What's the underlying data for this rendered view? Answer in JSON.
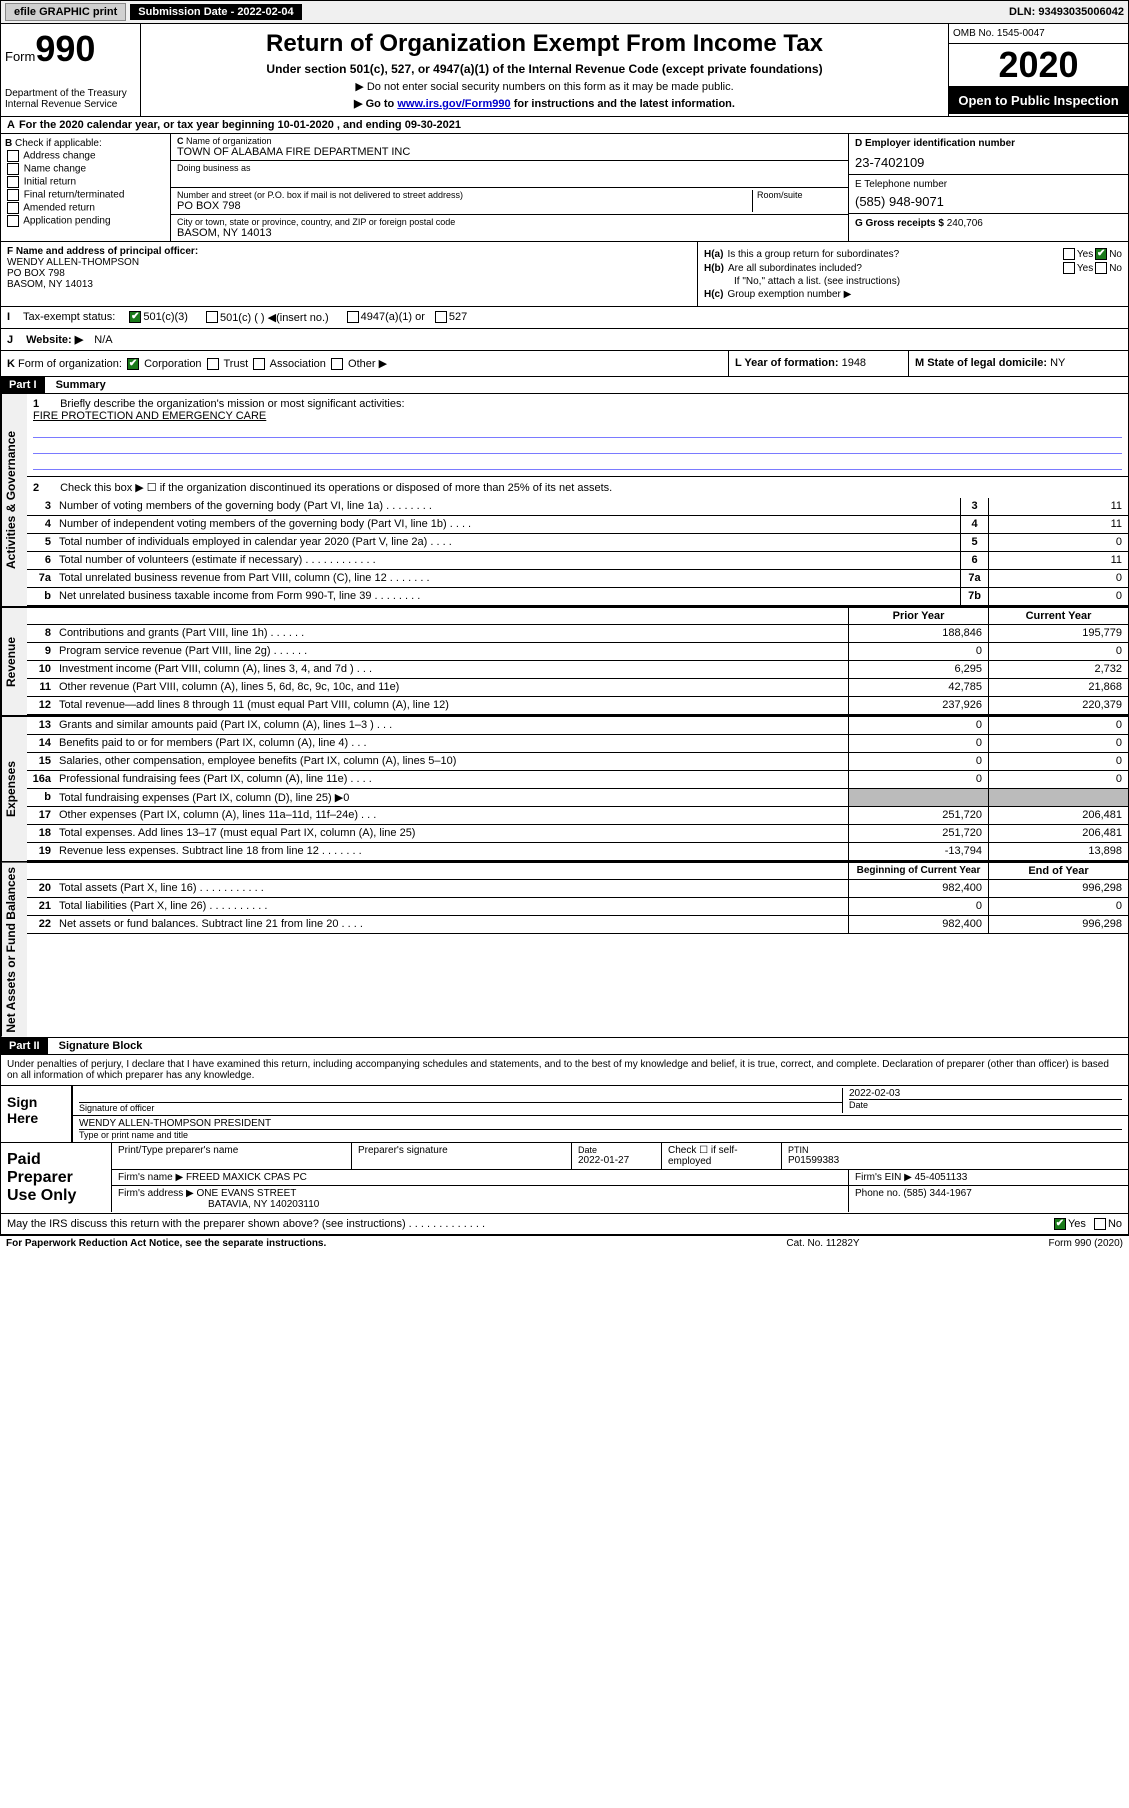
{
  "topbar": {
    "efile": "efile GRAPHIC print",
    "submission": "Submission Date - 2022-02-04",
    "dln": "DLN: 93493035006042"
  },
  "header": {
    "form_prefix": "Form",
    "form_number": "990",
    "dept": "Department of the Treasury\nInternal Revenue Service",
    "title": "Return of Organization Exempt From Income Tax",
    "sub1": "Under section 501(c), 527, or 4947(a)(1) of the Internal Revenue Code (except private foundations)",
    "sub2": "▶ Do not enter social security numbers on this form as it may be made public.",
    "sub3_pre": "▶ Go to ",
    "sub3_link": "www.irs.gov/Form990",
    "sub3_post": " for instructions and the latest information.",
    "omb": "OMB No. 1545-0047",
    "year": "2020",
    "public": "Open to Public Inspection"
  },
  "A": {
    "text": "For the 2020 calendar year, or tax year beginning 10-01-2020    , and ending 09-30-2021"
  },
  "B": {
    "label": "Check if applicable:",
    "items": [
      "Address change",
      "Name change",
      "Initial return",
      "Final return/terminated",
      "Amended return",
      "Application pending"
    ]
  },
  "C": {
    "name_lbl": "Name of organization",
    "name": "TOWN OF ALABAMA FIRE DEPARTMENT INC",
    "dba_lbl": "Doing business as",
    "addr_lbl": "Number and street (or P.O. box if mail is not delivered to street address)",
    "room_lbl": "Room/suite",
    "addr": "PO BOX 798",
    "city_lbl": "City or town, state or province, country, and ZIP or foreign postal code",
    "city": "BASOM, NY  14013"
  },
  "D": {
    "lbl": "D Employer identification number",
    "val": "23-7402109"
  },
  "E": {
    "lbl": "E Telephone number",
    "val": "(585) 948-9071"
  },
  "G": {
    "lbl": "G Gross receipts $",
    "val": "240,706"
  },
  "F": {
    "lbl": "F  Name and address of principal officer:",
    "name": "WENDY ALLEN-THOMPSON",
    "addr1": "PO BOX 798",
    "addr2": "BASOM, NY  14013"
  },
  "H": {
    "a": "Is this a group return for subordinates?",
    "b": "Are all subordinates included?",
    "b_note": "If \"No,\" attach a list. (see instructions)",
    "c": "Group exemption number ▶"
  },
  "I": {
    "label": "Tax-exempt status:",
    "opts": [
      "501(c)(3)",
      "501(c) (  ) ◀(insert no.)",
      "4947(a)(1) or",
      "527"
    ]
  },
  "J": {
    "label": "Website: ▶",
    "val": "N/A"
  },
  "K": {
    "label": "Form of organization:",
    "opts": [
      "Corporation",
      "Trust",
      "Association",
      "Other ▶"
    ]
  },
  "L": {
    "lbl": "L Year of formation:",
    "val": "1948"
  },
  "M": {
    "lbl": "M State of legal domicile:",
    "val": "NY"
  },
  "part1": {
    "bar": "Part I",
    "title": "Summary",
    "side_ag": "Activities & Governance",
    "side_rev": "Revenue",
    "side_exp": "Expenses",
    "side_na": "Net Assets or Fund Balances",
    "q1": "Briefly describe the organization's mission or most significant activities:",
    "q1_ans": "FIRE PROTECTION AND EMERGENCY CARE",
    "q2": "Check this box ▶ ☐  if the organization discontinued its operations or disposed of more than 25% of its net assets.",
    "lines_ag": [
      {
        "n": "3",
        "d": "Number of voting members of the governing body (Part VI, line 1a) . . . . . . . .",
        "c": "3",
        "v": "11"
      },
      {
        "n": "4",
        "d": "Number of independent voting members of the governing body (Part VI, line 1b) . . . .",
        "c": "4",
        "v": "11"
      },
      {
        "n": "5",
        "d": "Total number of individuals employed in calendar year 2020 (Part V, line 2a) . . . .",
        "c": "5",
        "v": "0"
      },
      {
        "n": "6",
        "d": "Total number of volunteers (estimate if necessary) . . . . . . . . . . . .",
        "c": "6",
        "v": "11"
      },
      {
        "n": "7a",
        "d": "Total unrelated business revenue from Part VIII, column (C), line 12 . . . . . . .",
        "c": "7a",
        "v": "0"
      },
      {
        "n": "b",
        "d": "Net unrelated business taxable income from Form 990-T, line 39 . . . . . . . .",
        "c": "7b",
        "v": "0"
      }
    ],
    "hdr_prior": "Prior Year",
    "hdr_curr": "Current Year",
    "lines_rev": [
      {
        "n": "8",
        "d": "Contributions and grants (Part VIII, line 1h) . . . . . .",
        "p": "188,846",
        "c": "195,779"
      },
      {
        "n": "9",
        "d": "Program service revenue (Part VIII, line 2g) . . . . . .",
        "p": "0",
        "c": "0"
      },
      {
        "n": "10",
        "d": "Investment income (Part VIII, column (A), lines 3, 4, and 7d ) . . .",
        "p": "6,295",
        "c": "2,732"
      },
      {
        "n": "11",
        "d": "Other revenue (Part VIII, column (A), lines 5, 6d, 8c, 9c, 10c, and 11e)",
        "p": "42,785",
        "c": "21,868"
      },
      {
        "n": "12",
        "d": "Total revenue—add lines 8 through 11 (must equal Part VIII, column (A), line 12)",
        "p": "237,926",
        "c": "220,379"
      }
    ],
    "lines_exp": [
      {
        "n": "13",
        "d": "Grants and similar amounts paid (Part IX, column (A), lines 1–3 ) . . .",
        "p": "0",
        "c": "0"
      },
      {
        "n": "14",
        "d": "Benefits paid to or for members (Part IX, column (A), line 4) . . .",
        "p": "0",
        "c": "0"
      },
      {
        "n": "15",
        "d": "Salaries, other compensation, employee benefits (Part IX, column (A), lines 5–10)",
        "p": "0",
        "c": "0"
      },
      {
        "n": "16a",
        "d": "Professional fundraising fees (Part IX, column (A), line 11e) . . . .",
        "p": "0",
        "c": "0"
      },
      {
        "n": "b",
        "d": "Total fundraising expenses (Part IX, column (D), line 25) ▶0",
        "p": "",
        "c": "",
        "shade": true
      },
      {
        "n": "17",
        "d": "Other expenses (Part IX, column (A), lines 11a–11d, 11f–24e) . . .",
        "p": "251,720",
        "c": "206,481"
      },
      {
        "n": "18",
        "d": "Total expenses. Add lines 13–17 (must equal Part IX, column (A), line 25)",
        "p": "251,720",
        "c": "206,481"
      },
      {
        "n": "19",
        "d": "Revenue less expenses. Subtract line 18 from line 12 . . . . . . .",
        "p": "-13,794",
        "c": "13,898"
      }
    ],
    "hdr_begin": "Beginning of Current Year",
    "hdr_end": "End of Year",
    "lines_na": [
      {
        "n": "20",
        "d": "Total assets (Part X, line 16) . . . . . . . . . . .",
        "p": "982,400",
        "c": "996,298"
      },
      {
        "n": "21",
        "d": "Total liabilities (Part X, line 26) . . . . . . . . . .",
        "p": "0",
        "c": "0"
      },
      {
        "n": "22",
        "d": "Net assets or fund balances. Subtract line 21 from line 20 . . . .",
        "p": "982,400",
        "c": "996,298"
      }
    ]
  },
  "part2": {
    "bar": "Part II",
    "title": "Signature Block",
    "decl": "Under penalties of perjury, I declare that I have examined this return, including accompanying schedules and statements, and to the best of my knowledge and belief, it is true, correct, and complete. Declaration of preparer (other than officer) is based on all information of which preparer has any knowledge.",
    "sign_here": "Sign Here",
    "sig_officer": "Signature of officer",
    "sig_date_lbl": "Date",
    "sig_date": "2022-02-03",
    "sig_name": "WENDY ALLEN-THOMPSON  PRESIDENT",
    "sig_type": "Type or print name and title",
    "paid": "Paid Preparer Use Only",
    "prep_name_lbl": "Print/Type preparer's name",
    "prep_sig_lbl": "Preparer's signature",
    "prep_date_lbl": "Date",
    "prep_date": "2022-01-27",
    "prep_check": "Check ☐ if self-employed",
    "ptin_lbl": "PTIN",
    "ptin": "P01599383",
    "firm_name_lbl": "Firm's name    ▶",
    "firm_name": "FREED MAXICK CPAS PC",
    "firm_ein_lbl": "Firm's EIN ▶",
    "firm_ein": "45-4051133",
    "firm_addr_lbl": "Firm's address ▶",
    "firm_addr1": "ONE EVANS STREET",
    "firm_addr2": "BATAVIA, NY  140203110",
    "phone_lbl": "Phone no.",
    "phone": "(585) 344-1967",
    "discuss": "May the IRS discuss this return with the preparer shown above? (see instructions) . . . . . . . . . . . . ."
  },
  "footer": {
    "left": "For Paperwork Reduction Act Notice, see the separate instructions.",
    "mid": "Cat. No. 11282Y",
    "right": "Form 990 (2020)"
  }
}
